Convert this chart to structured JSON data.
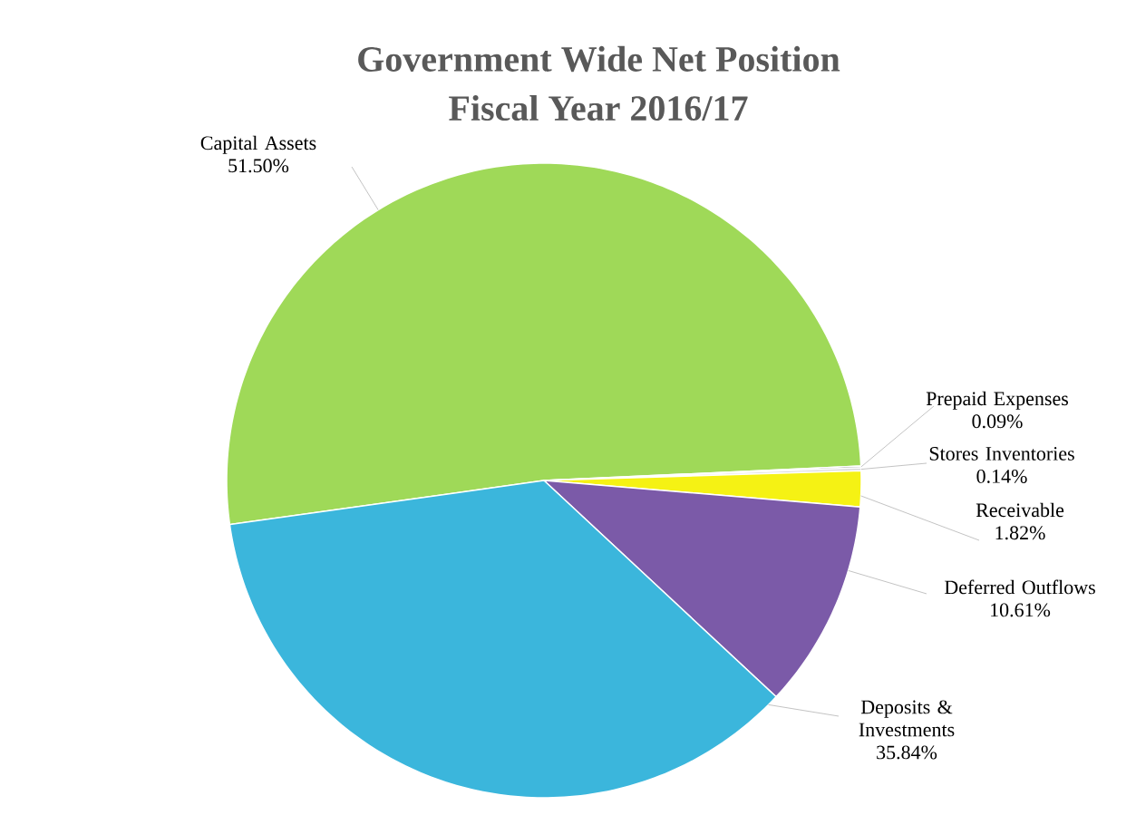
{
  "chart_data": {
    "type": "pie",
    "title": "Government Wide Net Position",
    "subtitle": "Fiscal Year 2016/17",
    "categories": [
      "Capital Assets",
      "Prepaid Expenses",
      "Stores Inventories",
      "Receivable",
      "Deferred Outflows",
      "Deposits & Investments"
    ],
    "values": [
      51.5,
      0.09,
      0.14,
      1.82,
      10.61,
      35.84
    ],
    "colors": [
      "#9fd958",
      "#7f7f7f",
      "#d9d9d9",
      "#f5f214",
      "#7b5aa8",
      "#3bb6dc"
    ],
    "value_labels": [
      "51.50%",
      "0.09%",
      "0.14%",
      "1.82%",
      "10.61%",
      "35.84%"
    ]
  }
}
